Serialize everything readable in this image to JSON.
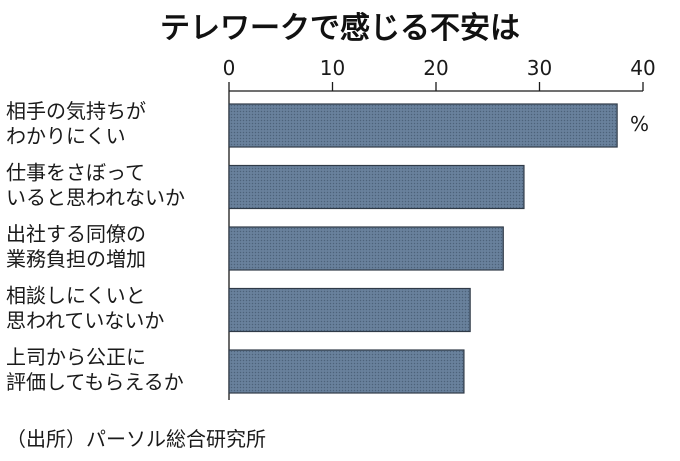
{
  "chart_data": {
    "type": "bar",
    "orientation": "horizontal",
    "title": "テレワークで感じる不安は",
    "unit": "%",
    "categories": [
      [
        "相手の気持ちが",
        "わかりにくい"
      ],
      [
        "仕事をさぼって",
        "いると思われないか"
      ],
      [
        "出社する同僚の",
        "業務負担の増加"
      ],
      [
        "相談しにくいと",
        "思われていないか"
      ],
      [
        "上司から公正に",
        "評価してもらえるか"
      ]
    ],
    "values": [
      37.5,
      28.5,
      26.5,
      23.3,
      22.7
    ],
    "xlim": [
      0,
      40
    ],
    "xticks": [
      "0",
      "10",
      "20",
      "30",
      "40"
    ],
    "bar_color": "#5d7590",
    "grid": false,
    "source": "（出所）パーソル総合研究所"
  }
}
